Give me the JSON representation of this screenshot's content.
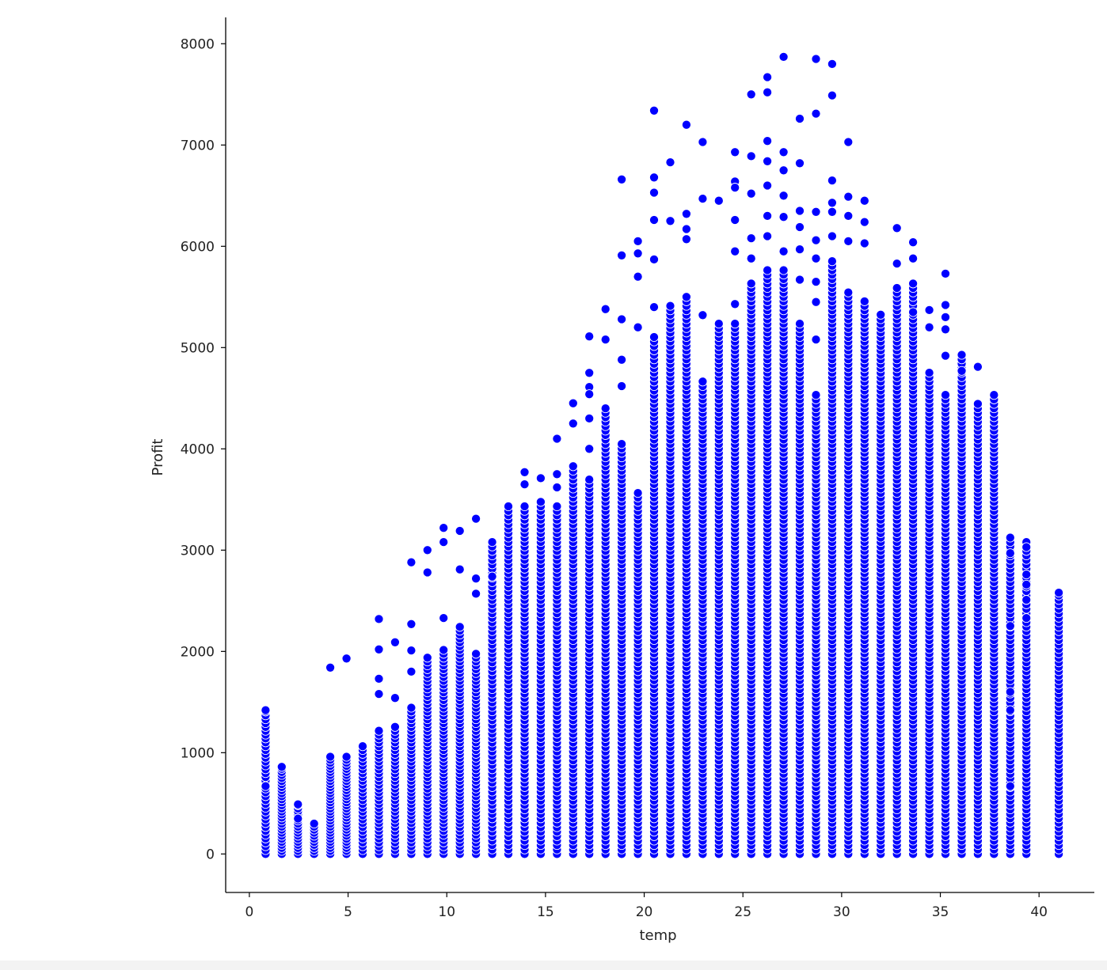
{
  "chart_data": {
    "type": "scatter",
    "title": "",
    "xlabel": "temp",
    "ylabel": "Profit",
    "xlim": [
      -1.2,
      42.8
    ],
    "ylim": [
      -380,
      8260
    ],
    "xticks": [
      0,
      5,
      10,
      15,
      20,
      25,
      30,
      35,
      40
    ],
    "yticks": [
      0,
      1000,
      2000,
      3000,
      4000,
      5000,
      6000,
      7000,
      8000
    ],
    "grid": false,
    "legend": "none",
    "marker_color": "#0000ff",
    "marker_edge_color": "#ffffff",
    "columns": [
      {
        "x": 0.82,
        "max": 1420,
        "extra": [
          1420,
          670
        ]
      },
      {
        "x": 1.64,
        "max": 860,
        "extra": [
          860
        ]
      },
      {
        "x": 2.46,
        "max": 490,
        "extra": [
          490,
          350
        ]
      },
      {
        "x": 3.28,
        "max": 320
      },
      {
        "x": 4.1,
        "max": 980,
        "extra": [
          1840
        ]
      },
      {
        "x": 4.92,
        "max": 980,
        "extra": [
          1930
        ]
      },
      {
        "x": 5.74,
        "max": 1100
      },
      {
        "x": 6.56,
        "max": 1250,
        "extra": [
          2320,
          2020,
          1730,
          1580
        ]
      },
      {
        "x": 7.38,
        "max": 1290,
        "extra": [
          2090,
          1540
        ]
      },
      {
        "x": 8.2,
        "max": 1470,
        "extra": [
          2880,
          2270,
          2010,
          1800
        ]
      },
      {
        "x": 9.02,
        "max": 1970,
        "extra": [
          3000,
          2780
        ]
      },
      {
        "x": 9.84,
        "max": 2040,
        "extra": [
          3220,
          3080,
          2330
        ]
      },
      {
        "x": 10.66,
        "max": 2270,
        "extra": [
          3190,
          2810
        ]
      },
      {
        "x": 11.48,
        "max": 2000,
        "extra": [
          3310,
          2720,
          2570
        ]
      },
      {
        "x": 12.3,
        "max": 3080,
        "extra": [
          2740
        ]
      },
      {
        "x": 13.12,
        "max": 3440
      },
      {
        "x": 13.94,
        "max": 3450,
        "extra": [
          3770,
          3650
        ]
      },
      {
        "x": 14.76,
        "max": 3500,
        "extra": [
          3710
        ]
      },
      {
        "x": 15.58,
        "max": 3460,
        "extra": [
          4100,
          3750,
          3620
        ]
      },
      {
        "x": 16.4,
        "max": 3830,
        "extra": [
          4450,
          4250
        ]
      },
      {
        "x": 17.22,
        "max": 3700,
        "extra": [
          5110,
          4750,
          4610,
          4540,
          4300,
          4000
        ]
      },
      {
        "x": 18.04,
        "max": 4440,
        "extra": [
          5380,
          5080
        ]
      },
      {
        "x": 18.86,
        "max": 4050,
        "extra": [
          6660,
          5910,
          5280,
          4880,
          4620
        ]
      },
      {
        "x": 19.68,
        "max": 3590,
        "extra": [
          6050,
          5930,
          5700,
          5200
        ]
      },
      {
        "x": 20.5,
        "max": 5120,
        "extra": [
          7340,
          6680,
          6530,
          6260,
          5870,
          5400
        ]
      },
      {
        "x": 21.32,
        "max": 5440,
        "extra": [
          6830,
          6250
        ]
      },
      {
        "x": 22.14,
        "max": 5530,
        "extra": [
          7200,
          6320,
          6170,
          6070
        ]
      },
      {
        "x": 22.96,
        "max": 4700,
        "extra": [
          7030,
          6470,
          5320
        ]
      },
      {
        "x": 23.78,
        "max": 5250,
        "extra": [
          6450
        ]
      },
      {
        "x": 24.6,
        "max": 5250,
        "extra": [
          6930,
          6640,
          6580,
          6260,
          5950,
          5430
        ]
      },
      {
        "x": 25.42,
        "max": 5650,
        "extra": [
          7500,
          6890,
          6520,
          6080,
          5880
        ]
      },
      {
        "x": 26.24,
        "max": 5800,
        "extra": [
          7670,
          7520,
          7040,
          6840,
          6600,
          6300,
          6100
        ]
      },
      {
        "x": 27.06,
        "max": 5800,
        "extra": [
          7870,
          6930,
          6750,
          6500,
          6290,
          5950
        ]
      },
      {
        "x": 27.88,
        "max": 5250,
        "extra": [
          7260,
          6820,
          6350,
          6190,
          5970,
          5670
        ]
      },
      {
        "x": 28.7,
        "max": 4550,
        "extra": [
          7850,
          7310,
          6340,
          6060,
          5880,
          5650,
          5450,
          5080
        ]
      },
      {
        "x": 29.52,
        "max": 5880,
        "extra": [
          7800,
          7490,
          6650,
          6430,
          6340,
          6100
        ]
      },
      {
        "x": 30.34,
        "max": 5550,
        "extra": [
          7030,
          6490,
          6300,
          6050
        ]
      },
      {
        "x": 31.16,
        "max": 5480,
        "extra": [
          6450,
          6240,
          6030
        ]
      },
      {
        "x": 31.98,
        "max": 5350
      },
      {
        "x": 32.8,
        "max": 5600,
        "extra": [
          6180,
          5830
        ]
      },
      {
        "x": 33.62,
        "max": 5640,
        "extra": [
          6040,
          5880,
          5350
        ]
      },
      {
        "x": 34.44,
        "max": 4760,
        "extra": [
          5370,
          5200
        ]
      },
      {
        "x": 35.26,
        "max": 4550,
        "extra": [
          5730,
          5420,
          5300,
          5180,
          4920
        ]
      },
      {
        "x": 36.08,
        "max": 4930,
        "extra": [
          4770
        ]
      },
      {
        "x": 36.9,
        "max": 4470,
        "extra": [
          4810
        ]
      },
      {
        "x": 37.72,
        "max": 4540
      },
      {
        "x": 38.54,
        "max": 3150,
        "extra": [
          2970,
          2250,
          1600,
          1420,
          670
        ]
      },
      {
        "x": 39.36,
        "max": 3080,
        "extra": [
          3030,
          2760,
          2660,
          2510,
          2330
        ]
      },
      {
        "x": 41.0,
        "max": 2580,
        "extra": [
          2580
        ]
      }
    ]
  }
}
